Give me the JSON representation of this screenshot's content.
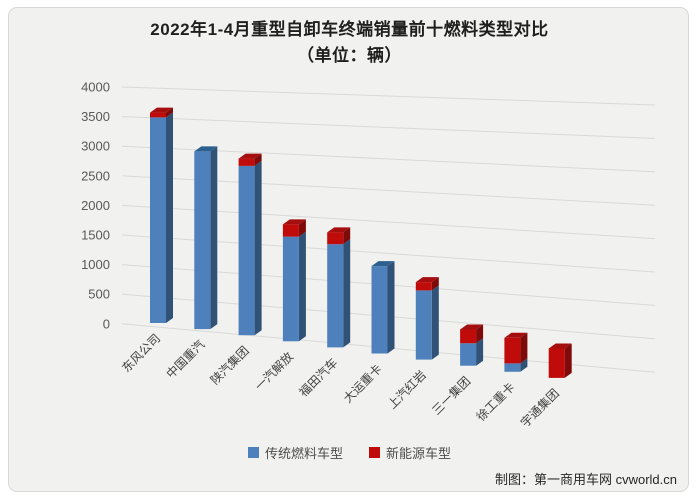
{
  "window": {
    "background": "#ffffff",
    "card_background": "#f1f1ef",
    "card_border": "#d8d8d6"
  },
  "chart_data": {
    "type": "bar",
    "variant": "3d-stacked-column",
    "title": "2022年1-4月重型自卸车终端销量前十燃料类型对比",
    "subtitle": "（单位：辆）",
    "unit": "辆",
    "categories": [
      "东风公司",
      "中国重汽",
      "陕汽集团",
      "一汽解放",
      "福田汽车",
      "大运重卡",
      "上汽红岩",
      "三一集团",
      "徐工重卡",
      "宇通集团"
    ],
    "series": [
      {
        "name": "传统燃料车型",
        "color": "#4E81BC",
        "color_side": "#2F5276",
        "color_top": "#2B608F",
        "values": [
          3450,
          2950,
          2780,
          1700,
          1660,
          1390,
          1090,
          350,
          130,
          0
        ]
      },
      {
        "name": "新能源车型",
        "color": "#C00B0B",
        "color_side": "#7E0A0A",
        "color_top": "#A50E0E",
        "values": [
          80,
          0,
          120,
          200,
          190,
          0,
          130,
          215,
          395,
          450
        ]
      }
    ],
    "ylim": [
      0,
      4000
    ],
    "ytick_step": 500,
    "yticks": [
      0,
      500,
      1000,
      1500,
      2000,
      2500,
      3000,
      3500,
      4000
    ],
    "grid": true,
    "legend_position": "bottom"
  },
  "footer": {
    "credit": "制图：第一商用车网 cvworld.cn"
  }
}
